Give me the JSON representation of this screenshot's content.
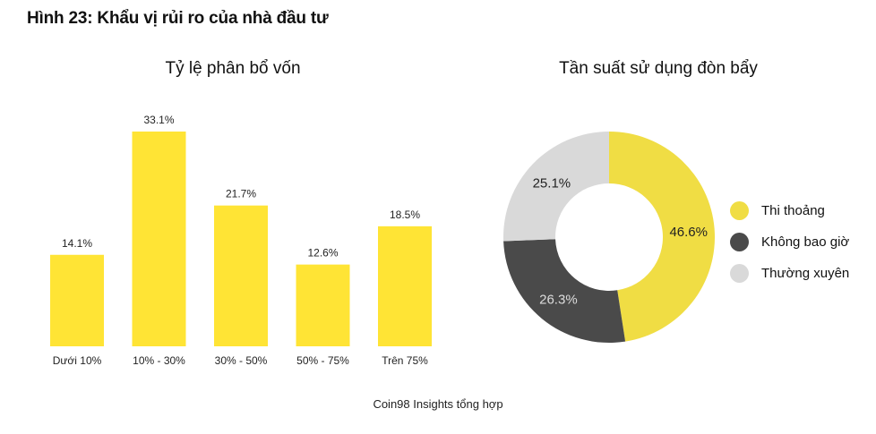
{
  "figure_title": "Hình 23: Khẩu vị rủi ro của nhà đầu tư",
  "source_note": "Coin98 Insights tổng hợp",
  "chart_data": [
    {
      "type": "bar",
      "title": "Tỷ lệ phân bổ vốn",
      "categories": [
        "Dưới 10%",
        "10% - 30%",
        "30% - 50%",
        "50% - 75%",
        "Trên 75%"
      ],
      "values": [
        14.1,
        33.1,
        21.7,
        12.6,
        18.5
      ],
      "value_labels": [
        "14.1%",
        "33.1%",
        "21.7%",
        "12.6%",
        "18.5%"
      ],
      "xlabel": "",
      "ylabel": "",
      "grid": false,
      "bar_color": "#FFE435"
    },
    {
      "type": "pie",
      "subtype": "donut",
      "title": "Tần suất sử dụng đòn bẩy",
      "slices": [
        {
          "label": "Thi thoảng",
          "value": 46.6,
          "value_label": "46.6%",
          "color": "#F0DD44",
          "text_color": "#222222"
        },
        {
          "label": "Không bao giờ",
          "value": 26.3,
          "value_label": "26.3%",
          "color": "#4A4A4A",
          "text_color": "#DDDDDD"
        },
        {
          "label": "Thường xuyên",
          "value": 25.1,
          "value_label": "25.1%",
          "color": "#D9D9D9",
          "text_color": "#222222"
        }
      ],
      "legend_position": "right"
    }
  ]
}
